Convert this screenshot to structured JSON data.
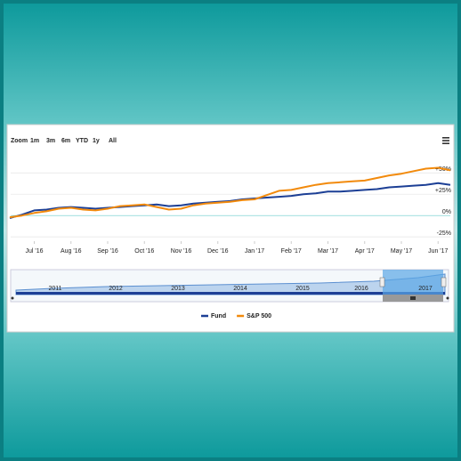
{
  "chart_data": {
    "type": "line",
    "range_selector": {
      "label": "Zoom",
      "buttons": [
        "1m",
        "3m",
        "6m",
        "YTD",
        "1y",
        "All"
      ]
    },
    "categories": [
      null,
      null,
      "Jul '16",
      null,
      null,
      "Aug '16",
      null,
      null,
      "Sep '16",
      null,
      null,
      "Oct '16",
      null,
      null,
      "Nov '16",
      null,
      null,
      "Dec '16",
      null,
      null,
      "Jan '17",
      null,
      null,
      "Feb '17",
      null,
      null,
      "Mar '17",
      null,
      null,
      "Apr '17",
      null,
      null,
      "May '17",
      null,
      null,
      "Jun '17",
      null
    ],
    "series": [
      {
        "name": "Fund",
        "color": "#1c3f95",
        "values": [
          -3,
          1,
          6,
          7,
          9,
          10,
          9,
          8,
          9,
          10,
          11,
          12,
          13,
          11,
          12,
          14,
          15,
          16,
          17,
          19,
          20,
          21,
          22,
          23,
          25,
          26,
          28,
          28,
          29,
          30,
          31,
          33,
          34,
          35,
          36,
          38,
          36
        ]
      },
      {
        "name": "S&P 500",
        "color": "#f28a0c",
        "values": [
          -2,
          0,
          3,
          5,
          8,
          9,
          7,
          6,
          8,
          11,
          12,
          13,
          10,
          7,
          8,
          12,
          14,
          15,
          16,
          18,
          19,
          24,
          29,
          30,
          33,
          36,
          38,
          39,
          40,
          41,
          44,
          47,
          49,
          52,
          55,
          56,
          53
        ]
      }
    ],
    "ylim": [
      -28,
      68
    ],
    "yticks": [
      {
        "value": -25,
        "label": "-25%"
      },
      {
        "value": 0,
        "label": "0%"
      },
      {
        "value": 25,
        "label": "+25%"
      },
      {
        "value": 50,
        "label": "+50%"
      }
    ],
    "grid": true,
    "navigator_labels": [
      "2011",
      "2012",
      "2013",
      "2014",
      "2015",
      "2016",
      "2017"
    ]
  }
}
